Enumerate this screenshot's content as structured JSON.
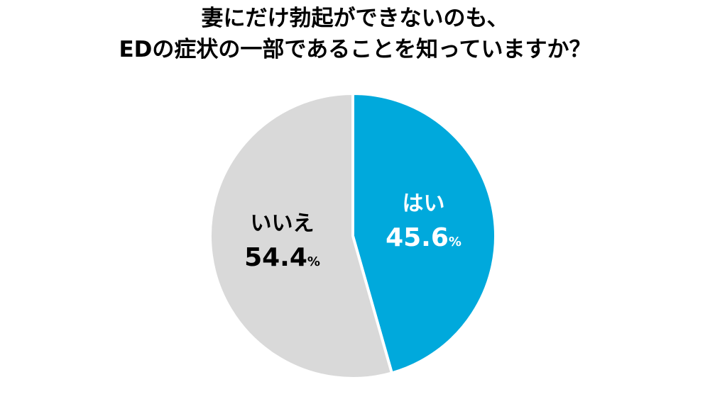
{
  "chart_data": {
    "type": "pie",
    "title_lines": [
      "妻にだけ勃起ができないのも、",
      "EDの症状の一部であることを知っていますか？"
    ],
    "start_angle_deg": 0,
    "direction": "clockwise",
    "slices": [
      {
        "label": "はい",
        "value": 45.6,
        "value_text": "45.6",
        "unit": "%",
        "color": "#00a9dc",
        "text_color": "#ffffff"
      },
      {
        "label": "いいえ",
        "value": 54.4,
        "value_text": "54.4",
        "unit": "%",
        "color": "#d9d9d9",
        "text_color": "#000000"
      }
    ]
  }
}
